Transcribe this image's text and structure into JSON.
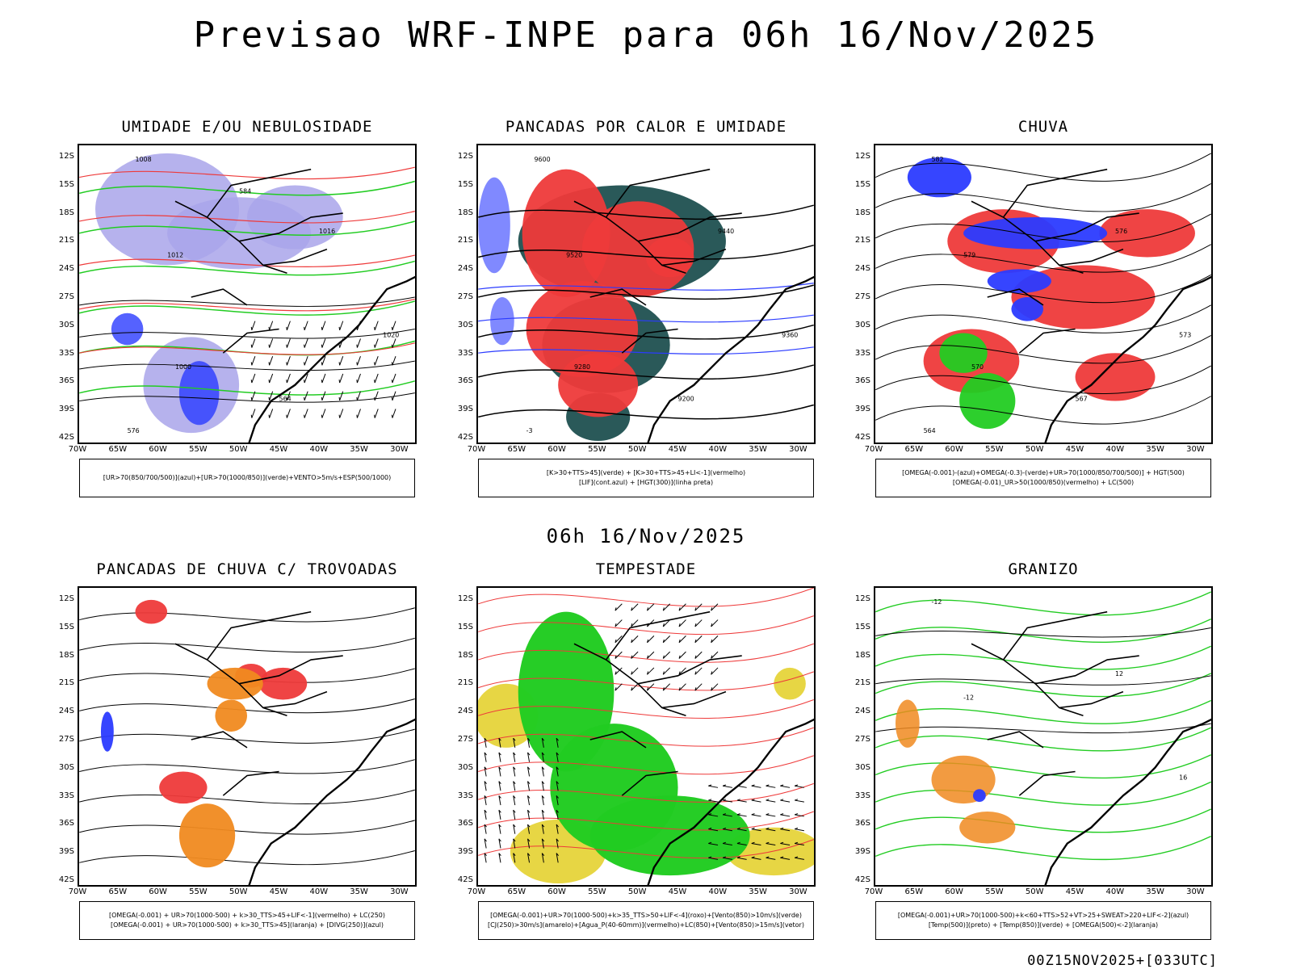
{
  "header": {
    "title": "Previsao WRF-INPE  para 06h 16/Nov/2025",
    "mid_date": "06h 16/Nov/2025",
    "footer": "00Z15NOV2025+[033UTC]"
  },
  "axes": {
    "lat_labels": [
      "12S",
      "15S",
      "18S",
      "21S",
      "24S",
      "27S",
      "30S",
      "33S",
      "36S",
      "39S",
      "42S"
    ],
    "lon_labels": [
      "70W",
      "65W",
      "60W",
      "55W",
      "50W",
      "45W",
      "40W",
      "35W",
      "30W"
    ]
  },
  "colors": {
    "blue": "#2b3bff",
    "lavender": "#a9a4ea",
    "green": "#22cc22",
    "red": "#ee3a3a",
    "darkteal": "#1f5050",
    "orange": "#f08a20",
    "yellow": "#e6d43a",
    "black": "#000000"
  },
  "panels": [
    {
      "title": "UMIDADE E/OU NEBULOSIDADE",
      "legend": [
        "[UR>70(850/700/500)](azul)+[UR>70(1000/850)](verde)+VENTO>5m/s+ESP(500/1000)"
      ],
      "contour_labels": [
        "1008",
        "1012",
        "1016",
        "1020",
        "1000",
        "564",
        "576",
        "584"
      ]
    },
    {
      "title": "PANCADAS POR CALOR E UMIDADE",
      "legend": [
        "[K>30+TTS>45](verde) + [K>30+TTS>45+LI<-1](vermelho)",
        "[LIF](cont.azul) + [HGT(300)](linha preta)"
      ],
      "contour_labels": [
        "9600",
        "9520",
        "9440",
        "9360",
        "9280",
        "9200",
        "-3"
      ]
    },
    {
      "title": "CHUVA",
      "legend": [
        "[OMEGA(-0.001)-(azul)+OMEGA(-0.3)-(verde)+UR>70(1000/850/700/500)] + HGT(500)",
        "[OMEGA(-0.01)_UR>50(1000/850)(vermelho) + LC(500)"
      ],
      "contour_labels": [
        "582",
        "579",
        "576",
        "573",
        "570",
        "567",
        "564"
      ]
    },
    {
      "title": "PANCADAS DE CHUVA C/ TROVOADAS",
      "legend": [
        "[OMEGA(-0.001) + UR>70(1000-500) + k>30_TTS>45+LIF<-1](vermelho) + LC(250)",
        "[OMEGA(-0.001) + UR>70(1000-500) + k>30_TTS>45](laranja) + [DIVG(250)](azul)"
      ],
      "contour_labels": []
    },
    {
      "title": "TEMPESTADE",
      "legend": [
        "[OMEGA(-0.001)+UR>70(1000-500)+k>35_TTS>50+LIF<-4](roxo)+[Vento(850)>10m/s](verde)",
        "[CJ(250)>30m/s](amarelo)+[Agua_P(40-60mm)](vermelho)+LC(850)+[Vento(850)>15m/s](vetor)"
      ],
      "contour_labels": []
    },
    {
      "title": "GRANIZO",
      "legend": [
        "[OMEGA(-0.001)+UR>70(1000-500)+k<60+TTS>52+VT>25+SWEAT>220+LIF<-2](azul)",
        "[Temp(500)](preto) + [Temp(850)](verde) + [OMEGA(500)<-2](laranja)"
      ],
      "contour_labels": [
        "-12",
        "-12",
        "12",
        "16"
      ]
    }
  ]
}
